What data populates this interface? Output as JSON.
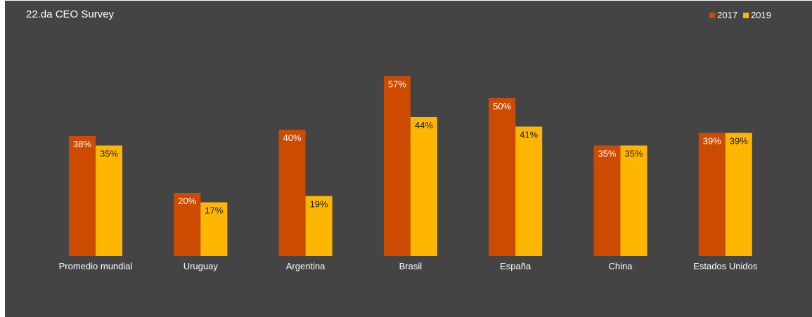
{
  "chart_data": {
    "type": "bar",
    "title": "22.da CEO Survey",
    "xlabel": "",
    "ylabel": "",
    "categories": [
      "Promedio mundial",
      "Uruguay",
      "Argentina",
      "Brasil",
      "España",
      "China",
      "Estados Unidos"
    ],
    "series": [
      {
        "name": "2017",
        "color": "#cc4b00",
        "label_color": "#ffffff",
        "values": [
          38,
          20,
          40,
          57,
          50,
          35,
          39
        ],
        "labels": [
          "38%",
          "20%",
          "40%",
          "57%",
          "50%",
          "35%",
          "39%"
        ]
      },
      {
        "name": "2019",
        "color": "#ffb600",
        "label_color": "#1a1a1a",
        "values": [
          35,
          17,
          19,
          44,
          41,
          35,
          39
        ],
        "labels": [
          "35%",
          "17%",
          "19%",
          "44%",
          "41%",
          "35%",
          "39%"
        ]
      }
    ],
    "ylim": [
      0,
      60
    ],
    "grid": false,
    "legend_position": "top-right",
    "background": "#444444"
  }
}
